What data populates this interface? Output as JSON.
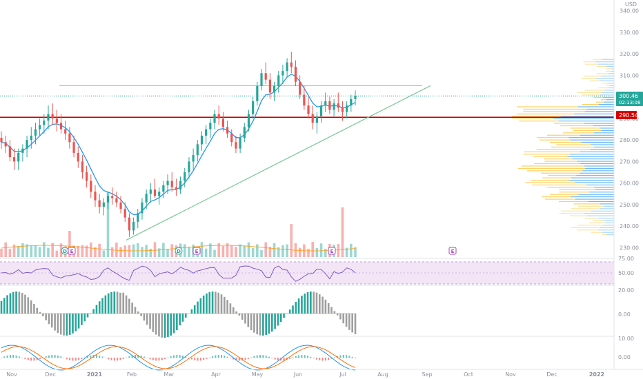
{
  "chart_data": {
    "type": "candlestick",
    "currency_label": "USD",
    "price_axis": {
      "range": [
        225,
        345
      ],
      "ticks": [
        "230.00",
        "240.00",
        "250.00",
        "260.00",
        "270.00",
        "280.00",
        "290.00",
        "300.00",
        "310.00",
        "320.00",
        "330.00",
        "340.00"
      ]
    },
    "time_axis": {
      "ticks": [
        "Nov",
        "Dec",
        "2021",
        "Feb",
        "Mar",
        "Apr",
        "May",
        "Jun",
        "Jul",
        "Aug",
        "Sep",
        "Oct",
        "Nov",
        "Dec",
        "2022"
      ]
    },
    "last_price": {
      "value": "300.46",
      "countdown": "02:13:08"
    },
    "horizontal_level": {
      "value": "290.54"
    },
    "resistance_level": 305.2,
    "trendline": {
      "from": {
        "x": 0.195,
        "price": 233.5
      },
      "to": {
        "x": 0.67,
        "price": 305.2
      }
    },
    "ohlc": [
      [
        281,
        284,
        276,
        279
      ],
      [
        279,
        282,
        274,
        277
      ],
      [
        277,
        280,
        270,
        272
      ],
      [
        272,
        276,
        266,
        270
      ],
      [
        270,
        276,
        266,
        274
      ],
      [
        274,
        278,
        270,
        276
      ],
      [
        276,
        282,
        272,
        280
      ],
      [
        280,
        286,
        276,
        282
      ],
      [
        282,
        288,
        278,
        285
      ],
      [
        285,
        290,
        282,
        287
      ],
      [
        287,
        292,
        283,
        289
      ],
      [
        289,
        296,
        285,
        292
      ],
      [
        292,
        297,
        287,
        290
      ],
      [
        290,
        294,
        284,
        288
      ],
      [
        288,
        292,
        283,
        285
      ],
      [
        285,
        289,
        280,
        283
      ],
      [
        283,
        286,
        276,
        279
      ],
      [
        279,
        282,
        272,
        274
      ],
      [
        274,
        277,
        267,
        270
      ],
      [
        270,
        273,
        262,
        265
      ],
      [
        265,
        268,
        258,
        261
      ],
      [
        261,
        264,
        253,
        256
      ],
      [
        256,
        259,
        249,
        252
      ],
      [
        252,
        255,
        246,
        249
      ],
      [
        249,
        253,
        245,
        251
      ],
      [
        251,
        256,
        248,
        254
      ],
      [
        254,
        258,
        250,
        253
      ],
      [
        253,
        256,
        249,
        251
      ],
      [
        251,
        254,
        246,
        248
      ],
      [
        248,
        251,
        242,
        244
      ],
      [
        244,
        246,
        235,
        238
      ],
      [
        238,
        244,
        236,
        242
      ],
      [
        242,
        248,
        239,
        246
      ],
      [
        246,
        253,
        243,
        251
      ],
      [
        251,
        257,
        248,
        255
      ],
      [
        255,
        260,
        251,
        257
      ],
      [
        257,
        262,
        253,
        254
      ],
      [
        254,
        258,
        250,
        256
      ],
      [
        256,
        261,
        253,
        259
      ],
      [
        259,
        264,
        255,
        261
      ],
      [
        261,
        265,
        256,
        258
      ],
      [
        258,
        262,
        254,
        257
      ],
      [
        257,
        263,
        255,
        261
      ],
      [
        261,
        267,
        258,
        265
      ],
      [
        265,
        272,
        262,
        270
      ],
      [
        270,
        276,
        266,
        273
      ],
      [
        273,
        280,
        270,
        278
      ],
      [
        278,
        284,
        275,
        282
      ],
      [
        282,
        287,
        278,
        285
      ],
      [
        285,
        290,
        281,
        288
      ],
      [
        288,
        294,
        285,
        292
      ],
      [
        292,
        296,
        287,
        290
      ],
      [
        290,
        293,
        284,
        286
      ],
      [
        286,
        289,
        281,
        283
      ],
      [
        283,
        285,
        277,
        279
      ],
      [
        279,
        282,
        274,
        276
      ],
      [
        276,
        283,
        274,
        281
      ],
      [
        281,
        288,
        279,
        286
      ],
      [
        286,
        294,
        284,
        292
      ],
      [
        292,
        300,
        290,
        298
      ],
      [
        298,
        307,
        296,
        305
      ],
      [
        305,
        313,
        303,
        311
      ],
      [
        311,
        316,
        306,
        308
      ],
      [
        308,
        311,
        299,
        302
      ],
      [
        302,
        307,
        298,
        305
      ],
      [
        305,
        312,
        302,
        310
      ],
      [
        310,
        315,
        306,
        312
      ],
      [
        312,
        318,
        309,
        316
      ],
      [
        316,
        321,
        311,
        314
      ],
      [
        314,
        317,
        305,
        307
      ],
      [
        307,
        310,
        299,
        301
      ],
      [
        301,
        305,
        294,
        296
      ],
      [
        296,
        300,
        290,
        292
      ],
      [
        292,
        296,
        285,
        288
      ],
      [
        288,
        293,
        283,
        291
      ],
      [
        291,
        298,
        288,
        296
      ],
      [
        296,
        302,
        293,
        298
      ],
      [
        298,
        300,
        292,
        294
      ],
      [
        294,
        299,
        291,
        297
      ],
      [
        297,
        302,
        293,
        295
      ],
      [
        295,
        298,
        289,
        293
      ],
      [
        293,
        298,
        290,
        296
      ],
      [
        296,
        301,
        293,
        299
      ],
      [
        299,
        303,
        296,
        300.46
      ]
    ],
    "volume_ma_line": true,
    "rsi": {
      "top_label": "75.00",
      "mid_label": "50.00"
    },
    "oscillator1": {
      "labels": [
        "20.00",
        "0.00"
      ]
    },
    "oscillator2": {
      "labels": [
        "10.00",
        "0.00"
      ]
    },
    "event_markers": [
      {
        "kind": "D",
        "label": "D"
      },
      {
        "kind": "E",
        "label": "E"
      },
      {
        "kind": "D",
        "label": "D"
      },
      {
        "kind": "E",
        "label": "E"
      },
      {
        "kind": "E",
        "label": "E"
      },
      {
        "kind": "E",
        "label": "E"
      }
    ],
    "colors": {
      "up": "#26a69a",
      "down": "#ef5350",
      "ema": "#2196f3",
      "trend": "#76c893",
      "level": "#d50000",
      "resistance": "#f28b82",
      "vp_up": "#fbc02d",
      "vp_down": "#42a5f5",
      "rsi_fill": "#f3e5f5",
      "rsi_line": "#7e57c2",
      "axis_bg": "#ffffff"
    }
  }
}
